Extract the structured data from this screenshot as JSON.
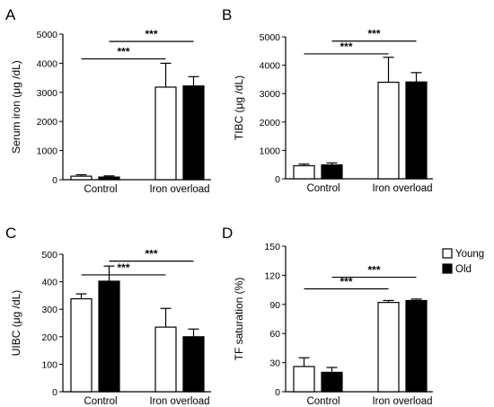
{
  "legend": {
    "items": [
      {
        "label": "Young",
        "fill": "#ffffff"
      },
      {
        "label": "Old",
        "fill": "#000000"
      }
    ]
  },
  "colors": {
    "young": "#ffffff",
    "old": "#000000",
    "stroke": "#000000"
  },
  "chart_data": [
    {
      "panel": "A",
      "type": "bar",
      "ylabel": "Serum iron (μg /dL)",
      "xlabel": "",
      "categories": [
        "Control",
        "Iron overload"
      ],
      "series": [
        {
          "name": "Young",
          "values": [
            120,
            3180
          ],
          "errors": [
            50,
            820
          ]
        },
        {
          "name": "Old",
          "values": [
            90,
            3220
          ],
          "errors": [
            40,
            320
          ]
        }
      ],
      "ylim": [
        0,
        5000
      ],
      "yticks": [
        "0",
        "1000",
        "2000",
        "3000",
        "4000",
        "5000"
      ],
      "significance": [
        {
          "label": "***",
          "level": 4150,
          "from": "Control-Young",
          "to": "Iron overload-Young"
        },
        {
          "label": "***",
          "level": 4750,
          "from": "Control-Old",
          "to": "Iron overload-Old"
        }
      ]
    },
    {
      "panel": "B",
      "type": "bar",
      "ylabel": "TIBC (μg /dL)",
      "xlabel": "",
      "categories": [
        "Control",
        "Iron overload"
      ],
      "series": [
        {
          "name": "Young",
          "values": [
            460,
            3400
          ],
          "errors": [
            60,
            880
          ]
        },
        {
          "name": "Old",
          "values": [
            490,
            3410
          ],
          "errors": [
            70,
            330
          ]
        }
      ],
      "ylim": [
        0,
        5000
      ],
      "yticks": [
        "0",
        "1000",
        "2000",
        "3000",
        "4000",
        "5000"
      ],
      "significance": [
        {
          "label": "***",
          "level": 4400,
          "from": "Control-Young",
          "to": "Iron overload-Young"
        },
        {
          "label": "***",
          "level": 4850,
          "from": "Control-Old",
          "to": "Iron overload-Old"
        }
      ]
    },
    {
      "panel": "C",
      "type": "bar",
      "ylabel": "UIBC (μg /dL)",
      "xlabel": "",
      "categories": [
        "Control",
        "Iron overload"
      ],
      "series": [
        {
          "name": "Young",
          "values": [
            338,
            235
          ],
          "errors": [
            18,
            68
          ]
        },
        {
          "name": "Old",
          "values": [
            402,
            200
          ],
          "errors": [
            55,
            28
          ]
        }
      ],
      "ylim": [
        0,
        500
      ],
      "yticks": [
        "0",
        "100",
        "200",
        "300",
        "400",
        "500"
      ],
      "significance": [
        {
          "label": "***",
          "level": 425,
          "from": "Control-Young",
          "to": "Iron overload-Young"
        },
        {
          "label": "***",
          "level": 475,
          "from": "Control-Old",
          "to": "Iron overload-Old"
        }
      ]
    },
    {
      "panel": "D",
      "type": "bar",
      "ylabel": "TF saturation (%)",
      "xlabel": "",
      "categories": [
        "Control",
        "Iron overload"
      ],
      "series": [
        {
          "name": "Young",
          "values": [
            26,
            92
          ],
          "errors": [
            9,
            2
          ]
        },
        {
          "name": "Old",
          "values": [
            20,
            94
          ],
          "errors": [
            5,
            1.5
          ]
        }
      ],
      "ylim": [
        0,
        150
      ],
      "yticks": [
        "0",
        "30",
        "60",
        "90",
        "120",
        "150"
      ],
      "significance": [
        {
          "label": "***",
          "level": 106,
          "from": "Control-Young",
          "to": "Iron overload-Young"
        },
        {
          "label": "***",
          "level": 118,
          "from": "Control-Old",
          "to": "Iron overload-Old"
        }
      ]
    }
  ]
}
